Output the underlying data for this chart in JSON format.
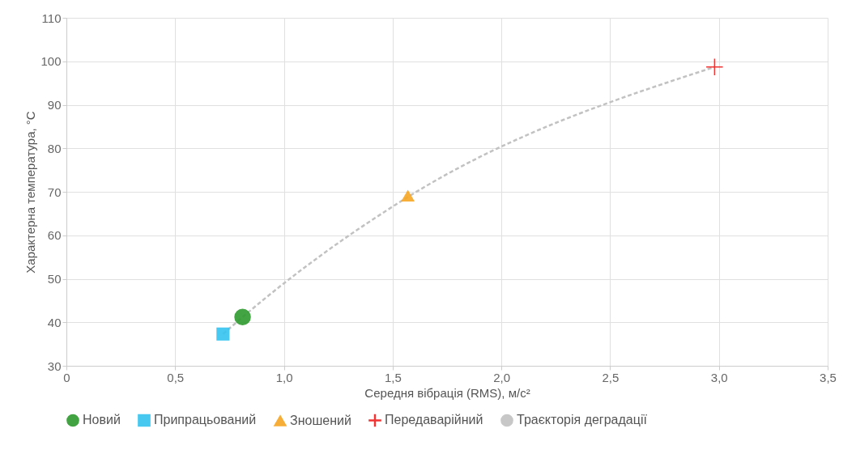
{
  "chart_data": {
    "type": "scatter",
    "xlabel": "Середня вібрація (RMS), м/с²",
    "ylabel": "Характерна температура, °C",
    "xlim": [
      0,
      3.5
    ],
    "xticks": [
      {
        "value": 0,
        "label": "0"
      },
      {
        "value": 0.5,
        "label": "0,5"
      },
      {
        "value": 1.0,
        "label": "1,0"
      },
      {
        "value": 1.5,
        "label": "1,5"
      },
      {
        "value": 2.0,
        "label": "2,0"
      },
      {
        "value": 2.5,
        "label": "2,5"
      },
      {
        "value": 3.0,
        "label": "3,0"
      },
      {
        "value": 3.5,
        "label": "3,5"
      }
    ],
    "ylim": [
      30,
      110
    ],
    "yticks": [
      30,
      40,
      50,
      60,
      70,
      80,
      90,
      100,
      110
    ],
    "grid": true,
    "legend": "bottom",
    "series": [
      {
        "name": "Новий",
        "marker": "circle",
        "color": "#2e9a2e",
        "x": [
          0.81
        ],
        "values": [
          41.2
        ]
      },
      {
        "name": "Припрацьований",
        "marker": "square",
        "color": "#33c3f0",
        "x": [
          0.72
        ],
        "values": [
          37.3
        ]
      },
      {
        "name": "Зношений",
        "marker": "triangle",
        "color": "#f7a623",
        "x": [
          1.57
        ],
        "values": [
          69.1
        ]
      },
      {
        "name": "Передаварійний",
        "marker": "cross",
        "color": "#f01e1e",
        "x": [
          2.98
        ],
        "values": [
          98.7
        ]
      },
      {
        "name": "Траєкторія деградації",
        "type": "line",
        "marker": "none",
        "line_style": "dashed",
        "color": "#c2c2c2",
        "x": [
          0.72,
          0.81,
          1.57,
          2.98
        ],
        "values": [
          37.3,
          41.2,
          68.8,
          98.7
        ]
      }
    ]
  }
}
